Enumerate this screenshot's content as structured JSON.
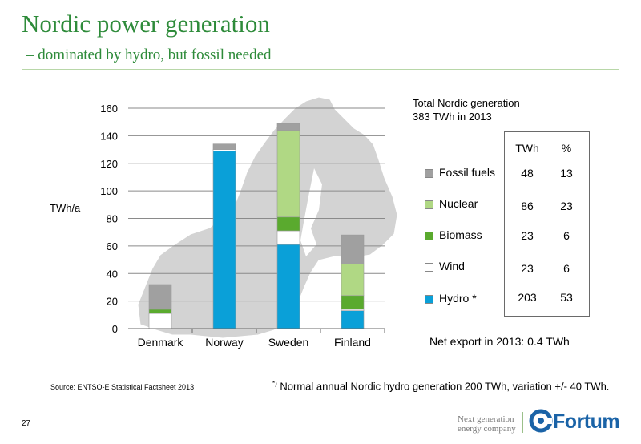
{
  "slide": {
    "title": "Nordic power generation",
    "subtitle": "– dominated by hydro, but fossil needed",
    "total_line1": "Total Nordic generation",
    "total_line2": "383 TWh in 2013",
    "net_export": "Net export in 2013:  0.4 TWh",
    "source": "Source: ENTSO-E Statistical Factsheet 2013",
    "footnote_mark": "*)",
    "footnote_text": " Normal annual Nordic hydro generation 200 TWh, variation +/- 40 TWh.",
    "page_number": "27",
    "tagline_line1": "Next generation",
    "tagline_line2": "energy company",
    "logo_text": "Fortum"
  },
  "table": {
    "headers": [
      "TWh",
      "%"
    ],
    "rows": [
      {
        "twh": "48",
        "pct": "13"
      },
      {
        "twh": "86",
        "pct": "23"
      },
      {
        "twh": "23",
        "pct": "6"
      },
      {
        "twh": "23",
        "pct": "6"
      },
      {
        "twh": "203",
        "pct": "53"
      }
    ]
  },
  "chart_data": {
    "type": "bar",
    "stacked": true,
    "categories": [
      "Denmark",
      "Norway",
      "Sweden",
      "Finland"
    ],
    "ylabel": "TWh/a",
    "ylim": [
      0,
      160
    ],
    "yticks": [
      0,
      20,
      40,
      60,
      80,
      100,
      120,
      140,
      160
    ],
    "grid": true,
    "legend_position": "right",
    "series": [
      {
        "name": "Hydro *",
        "color": "#0aa0d8",
        "values": [
          0,
          129,
          61,
          13
        ]
      },
      {
        "name": "Wind",
        "color": "#ffffff",
        "values": [
          11,
          1,
          10,
          1
        ]
      },
      {
        "name": "Biomass",
        "color": "#5aaa2e",
        "values": [
          3,
          0,
          10,
          10
        ]
      },
      {
        "name": "Nuclear",
        "color": "#b0d884",
        "values": [
          0,
          0,
          63,
          23
        ]
      },
      {
        "name": "Fossil fuels",
        "color": "#a0a0a0",
        "values": [
          18,
          4,
          5,
          21
        ]
      }
    ]
  }
}
